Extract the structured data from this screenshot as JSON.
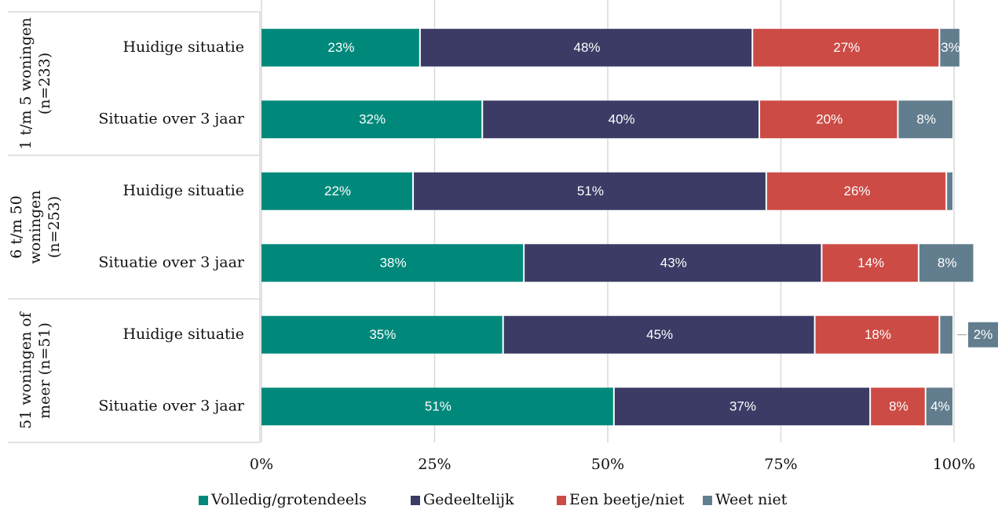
{
  "chart_data": {
    "type": "stacked-barh",
    "groups": [
      {
        "label": [
          "1 t/m 5 woningen",
          "(n=233)"
        ],
        "categories": [
          "Huidige situatie",
          "Situatie over 3 jaar"
        ]
      },
      {
        "label": [
          "6 t/m 50",
          "woningen",
          "(n=253)"
        ],
        "categories": [
          "Huidige situatie",
          "Situatie over 3 jaar"
        ]
      },
      {
        "label": [
          "51 woningen of",
          "meer (n=51)"
        ],
        "categories": [
          "Huidige situatie",
          "Situatie over 3 jaar"
        ]
      }
    ],
    "series": [
      {
        "name": "Volledig/grotendeels",
        "color": "#00897b",
        "values": [
          23,
          32,
          22,
          38,
          35,
          51
        ],
        "value_labels": [
          "23%",
          "32%",
          "22%",
          "38%",
          "35%",
          "51%"
        ]
      },
      {
        "name": "Gedeeltelijk",
        "color": "#3b3b66",
        "values": [
          48,
          40,
          51,
          43,
          45,
          37
        ],
        "value_labels": [
          "48%",
          "40%",
          "51%",
          "43%",
          "45%",
          "37%"
        ]
      },
      {
        "name": "Een beetje/niet",
        "color": "#cd4b45",
        "values": [
          27,
          20,
          26,
          14,
          18,
          8
        ],
        "value_labels": [
          "27%",
          "20%",
          "26%",
          "14%",
          "18%",
          "8%"
        ]
      },
      {
        "name": "Weet niet",
        "color": "#627e8e",
        "values": [
          3,
          8,
          1,
          8,
          2,
          4
        ],
        "value_labels": [
          "3%",
          "8%",
          null,
          "8%",
          "2%",
          "4%"
        ]
      }
    ],
    "xlim": [
      0,
      100
    ],
    "xticks": [
      {
        "value": 0,
        "label": "0%"
      },
      {
        "value": 25,
        "label": "25%"
      },
      {
        "value": 50,
        "label": "50%"
      },
      {
        "value": 75,
        "label": "75%"
      },
      {
        "value": 100,
        "label": "100%"
      }
    ],
    "grid": true,
    "legend": "bottom"
  }
}
